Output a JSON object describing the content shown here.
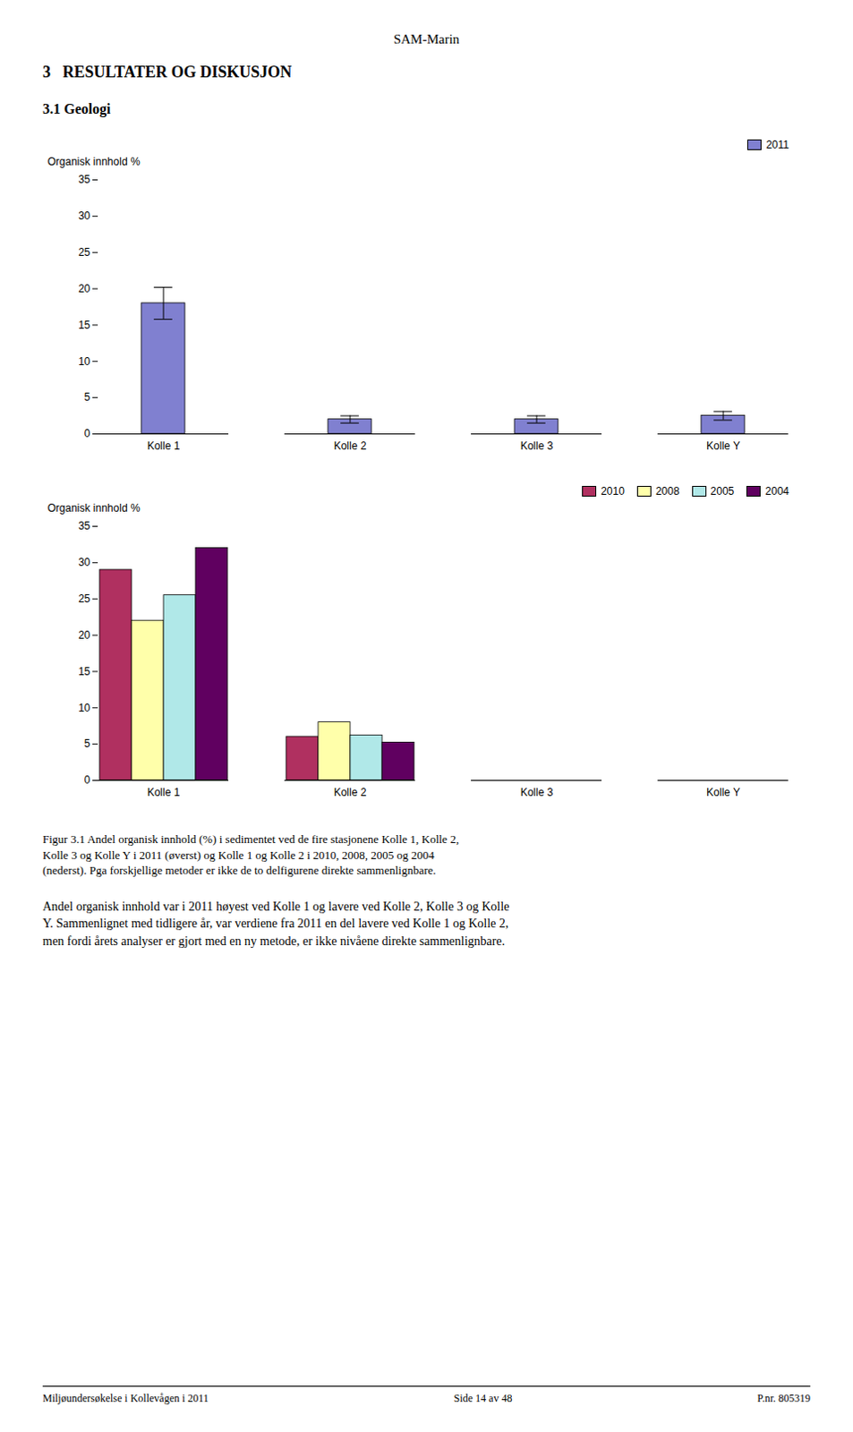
{
  "page_title": "SAM-Marin",
  "section_title": "3   RESULTATER OG DISKUSJON",
  "subsection_title": "3.1 Geologi",
  "chart_data": [
    {
      "type": "bar",
      "categories": [
        "Kolle 1",
        "Kolle 2",
        "Kolle 3",
        "Kolle Y"
      ],
      "series": [
        {
          "name": "2011",
          "color": "#8080d0",
          "values": [
            18.0,
            2.0,
            2.0,
            2.5
          ],
          "errors": [
            2.2,
            0.5,
            0.5,
            0.6
          ]
        }
      ],
      "ylabel": "Organisk innhold %",
      "ylim": [
        0,
        35
      ],
      "yticks": [
        0,
        5,
        10,
        15,
        20,
        25,
        30,
        35
      ],
      "grid": false,
      "legend": "upper right"
    },
    {
      "type": "bar",
      "categories": [
        "Kolle 1",
        "Kolle 2",
        "Kolle 3",
        "Kolle Y"
      ],
      "series": [
        {
          "name": "2010",
          "color": "#b03060",
          "values": [
            29.0,
            6.0,
            0,
            0
          ]
        },
        {
          "name": "2008",
          "color": "#ffffaa",
          "values": [
            22.0,
            8.0,
            0,
            0
          ]
        },
        {
          "name": "2005",
          "color": "#b0e8e8",
          "values": [
            25.5,
            6.2,
            0,
            0
          ]
        },
        {
          "name": "2004",
          "color": "#600060",
          "values": [
            32.0,
            5.2,
            0,
            0
          ]
        }
      ],
      "ylabel": "Organisk innhold %",
      "ylim": [
        0,
        35
      ],
      "yticks": [
        0,
        5,
        10,
        15,
        20,
        25,
        30,
        35
      ],
      "grid": false,
      "legend": "upper right"
    }
  ],
  "figure_caption": "Figur 3.1 Andel organisk innhold (%) i sedimentet ved de fire stasjonene Kolle 1, Kolle 2,\nKolle 3 og Kolle Y i 2011 (øverst) og Kolle 1 og Kolle 2 i 2010, 2008, 2005 og 2004\n(nederst). Pga forskjellige metoder er ikke de to delfigurene direkte sammenlignbare.",
  "body_text": "Andel organisk innhold var i 2011 høyest ved Kolle 1 og lavere ved Kolle 2, Kolle 3 og Kolle\nY. Sammenlignet med tidligere år, var verdiene fra 2011 en del lavere ved Kolle 1 og Kolle 2,\nmen fordi årets analyser er gjort med en ny metode, er ikke nivåene direkte sammenlignbare.",
  "footer_left": "Miljøundersøkelse i Kollevågen i 2011",
  "footer_center": "Side 14 av 48",
  "footer_right": "P.nr. 805319"
}
